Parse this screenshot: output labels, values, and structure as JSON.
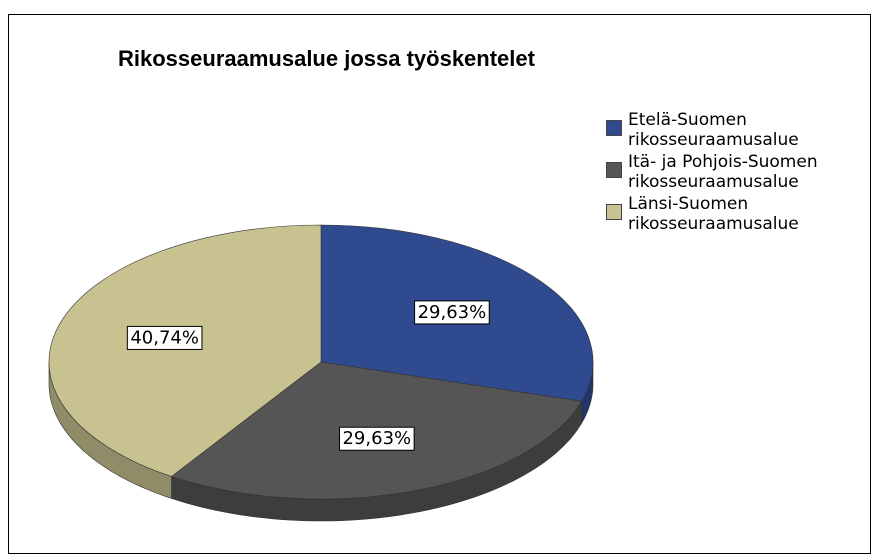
{
  "chart_data": {
    "type": "pie",
    "title": "Rikosseuraamusalue jossa työskentelet",
    "categories": [
      "Etelä-Suomen rikosseuraamusalue",
      "Itä- ja Pohjois-Suomen rikosseuraamusalue",
      "Länsi-Suomen rikosseuraamusalue"
    ],
    "values": [
      29.63,
      29.63,
      40.74
    ],
    "value_labels": [
      "29,63%",
      "29,63%",
      "40,74%"
    ],
    "colors": [
      "#2f4a8e",
      "#555555",
      "#c8c291"
    ],
    "legend": "right"
  }
}
